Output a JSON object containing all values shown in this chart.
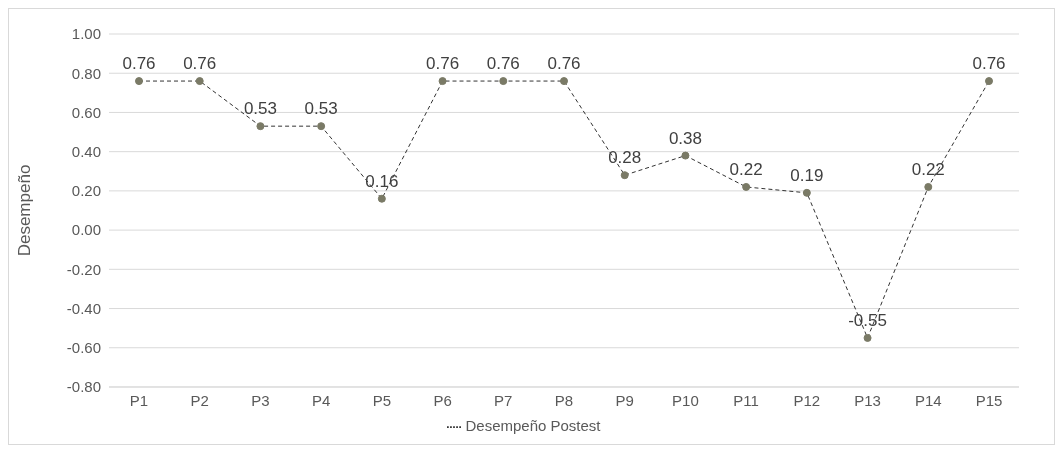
{
  "chart_data": {
    "type": "line",
    "ylabel": "Desempeño",
    "categories": [
      "P1",
      "P2",
      "P3",
      "P4",
      "P5",
      "P6",
      "P7",
      "P8",
      "P9",
      "P10",
      "P11",
      "P12",
      "P13",
      "P14",
      "P15"
    ],
    "series": [
      {
        "name": "Desempeño Postest",
        "color": "#7a7a66",
        "values": [
          0.76,
          0.76,
          0.53,
          0.53,
          0.16,
          0.76,
          0.76,
          0.76,
          0.28,
          0.38,
          0.22,
          0.19,
          -0.55,
          0.22,
          0.76
        ]
      }
    ],
    "ylim": [
      -0.8,
      1.0
    ],
    "yticks": [
      {
        "value": -0.8,
        "label": "-0.80"
      },
      {
        "value": -0.6,
        "label": "-0.60"
      },
      {
        "value": -0.4,
        "label": "-0.40"
      },
      {
        "value": -0.2,
        "label": "-0.20"
      },
      {
        "value": 0,
        "label": "0.00"
      },
      {
        "value": 0.2,
        "label": "0.20"
      },
      {
        "value": 0.4,
        "label": "0.40"
      },
      {
        "value": 0.6,
        "label": "0.60"
      },
      {
        "value": 0.8,
        "label": "0.80"
      },
      {
        "value": 1.0,
        "label": "1.00"
      }
    ],
    "grid": "y",
    "legend": "bottom",
    "marker": "circle",
    "line_style": "dashed",
    "data_labels": true
  }
}
